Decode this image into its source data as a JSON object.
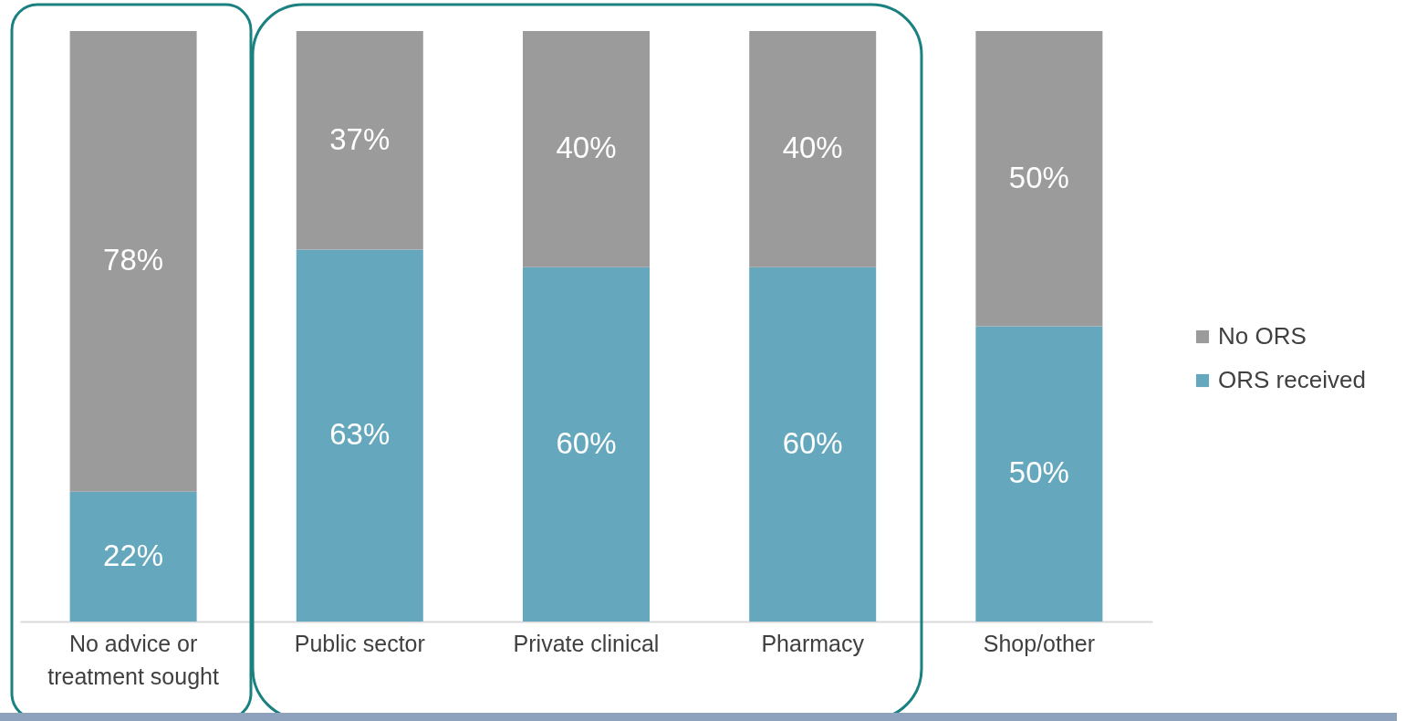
{
  "chart_data": {
    "type": "bar",
    "stacked": true,
    "legend": "right",
    "categories": [
      "No advice or treatment sought",
      "Public sector",
      "Private clinical",
      "Pharmacy",
      "Shop/other"
    ],
    "series": [
      {
        "name": "ORS received",
        "color": "#65a8be",
        "values": [
          22,
          63,
          60,
          60,
          50
        ],
        "value_labels": [
          "22%",
          "63%",
          "60%",
          "60%",
          "50%"
        ]
      },
      {
        "name": "No ORS",
        "color": "#9b9b9b",
        "values": [
          78,
          37,
          40,
          40,
          50
        ],
        "value_labels": [
          "78%",
          "37%",
          "40%",
          "40%",
          "50%"
        ]
      }
    ]
  }
}
